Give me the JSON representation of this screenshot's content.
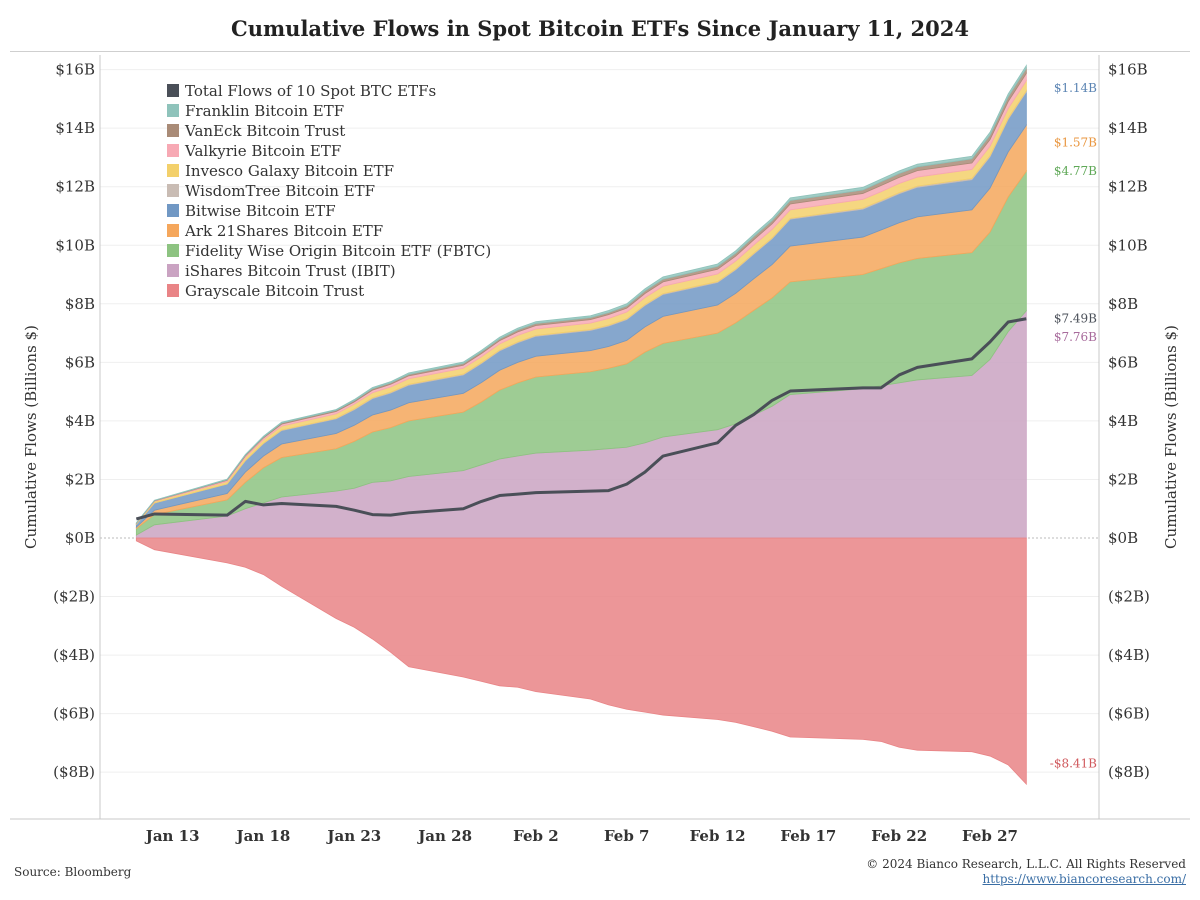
{
  "chart_data": {
    "type": "area",
    "title": "Cumulative Flows in Spot Bitcoin ETFs Since January 11, 2024",
    "ylabel_left": "Cumulative Flows (Billions $)",
    "ylabel_right": "Cumulative Flows (Billions $)",
    "ylim": [
      -9.6,
      16.5
    ],
    "y_ticks": [
      16,
      14,
      12,
      10,
      8,
      6,
      4,
      2,
      0,
      -2,
      -4,
      -6,
      -8
    ],
    "y_tick_labels": [
      "$16B",
      "$14B",
      "$12B",
      "$10B",
      "$8B",
      "$6B",
      "$4B",
      "$2B",
      "$0B",
      "($2B)",
      "($4B)",
      "($6B)",
      "($8B)"
    ],
    "x_ticks": [
      "2024-01-13",
      "2024-01-18",
      "2024-01-23",
      "2024-01-28",
      "2024-02-02",
      "2024-02-07",
      "2024-02-12",
      "2024-02-17",
      "2024-02-22",
      "2024-02-27"
    ],
    "x_tick_labels": [
      "Jan 13",
      "Jan 18",
      "Jan 23",
      "Jan 28",
      "Feb 2",
      "Feb 7",
      "Feb 12",
      "Feb 17",
      "Feb 22",
      "Feb 27"
    ],
    "xlim": [
      "2024-01-09",
      "2024-03-04"
    ],
    "x": [
      "2024-01-11",
      "2024-01-12",
      "2024-01-16",
      "2024-01-17",
      "2024-01-18",
      "2024-01-19",
      "2024-01-22",
      "2024-01-23",
      "2024-01-24",
      "2024-01-25",
      "2024-01-26",
      "2024-01-29",
      "2024-01-30",
      "2024-01-31",
      "2024-02-01",
      "2024-02-02",
      "2024-02-05",
      "2024-02-06",
      "2024-02-07",
      "2024-02-08",
      "2024-02-09",
      "2024-02-12",
      "2024-02-13",
      "2024-02-14",
      "2024-02-15",
      "2024-02-16",
      "2024-02-20",
      "2024-02-21",
      "2024-02-22",
      "2024-02-23",
      "2024-02-26",
      "2024-02-27",
      "2024-02-28",
      "2024-02-29"
    ],
    "stack_positive": [
      "iShares Bitcoin Trust (IBIT)",
      "Fidelity Wise Origin Bitcoin ETF (FBTC)",
      "Ark 21Shares Bitcoin ETF",
      "Bitwise Bitcoin ETF",
      "WisdomTree Bitcoin ETF",
      "Invesco Galaxy Bitcoin ETF",
      "Valkyrie Bitcoin ETF",
      "VanEck Bitcoin Trust",
      "Franklin Bitcoin ETF"
    ],
    "series": [
      {
        "name": "Total Flows of 10 Spot BTC ETFs",
        "color": "#4a4f58",
        "kind": "line",
        "values": [
          0.65,
          0.82,
          0.78,
          1.25,
          1.13,
          1.18,
          1.08,
          0.95,
          0.8,
          0.78,
          0.86,
          1.0,
          1.25,
          1.45,
          1.5,
          1.55,
          1.6,
          1.62,
          1.84,
          2.25,
          2.8,
          3.25,
          3.85,
          4.22,
          4.7,
          5.02,
          5.13,
          5.13,
          5.57,
          5.83,
          6.12,
          6.7,
          7.38,
          7.49
        ]
      },
      {
        "name": "Franklin Bitcoin ETF",
        "color": "#8fc3bb",
        "values": [
          0.01,
          0.01,
          0.02,
          0.02,
          0.03,
          0.03,
          0.03,
          0.04,
          0.04,
          0.04,
          0.05,
          0.05,
          0.05,
          0.06,
          0.06,
          0.06,
          0.06,
          0.07,
          0.07,
          0.07,
          0.08,
          0.08,
          0.08,
          0.08,
          0.08,
          0.09,
          0.09,
          0.09,
          0.09,
          0.09,
          0.09,
          0.1,
          0.1,
          0.1
        ]
      },
      {
        "name": "VanEck Bitcoin Trust",
        "color": "#a98b77",
        "values": [
          0.01,
          0.01,
          0.02,
          0.03,
          0.03,
          0.04,
          0.04,
          0.04,
          0.05,
          0.05,
          0.05,
          0.06,
          0.06,
          0.06,
          0.07,
          0.07,
          0.07,
          0.07,
          0.08,
          0.09,
          0.09,
          0.1,
          0.1,
          0.11,
          0.11,
          0.12,
          0.12,
          0.13,
          0.13,
          0.13,
          0.14,
          0.15,
          0.16,
          0.17
        ]
      },
      {
        "name": "Valkyrie Bitcoin ETF",
        "color": "#f7a9b4",
        "values": [
          0.01,
          0.02,
          0.04,
          0.05,
          0.06,
          0.07,
          0.08,
          0.08,
          0.09,
          0.09,
          0.1,
          0.1,
          0.11,
          0.11,
          0.12,
          0.12,
          0.12,
          0.13,
          0.13,
          0.14,
          0.15,
          0.16,
          0.17,
          0.18,
          0.19,
          0.2,
          0.2,
          0.21,
          0.21,
          0.22,
          0.22,
          0.23,
          0.24,
          0.25
        ]
      },
      {
        "name": "Invesco Galaxy Bitcoin ETF",
        "color": "#f3d06b",
        "values": [
          0.02,
          0.05,
          0.08,
          0.1,
          0.12,
          0.13,
          0.15,
          0.16,
          0.17,
          0.18,
          0.19,
          0.2,
          0.2,
          0.21,
          0.22,
          0.22,
          0.22,
          0.23,
          0.23,
          0.24,
          0.25,
          0.26,
          0.27,
          0.28,
          0.29,
          0.29,
          0.3,
          0.3,
          0.31,
          0.31,
          0.31,
          0.32,
          0.33,
          0.34
        ]
      },
      {
        "name": "WisdomTree Bitcoin ETF",
        "color": "#c9bcb4",
        "values": [
          0.0,
          0.01,
          0.01,
          0.02,
          0.02,
          0.02,
          0.02,
          0.03,
          0.03,
          0.03,
          0.03,
          0.03,
          0.03,
          0.03,
          0.03,
          0.03,
          0.03,
          0.03,
          0.03,
          0.03,
          0.03,
          0.03,
          0.03,
          0.03,
          0.03,
          0.03,
          0.04,
          0.04,
          0.04,
          0.04,
          0.04,
          0.04,
          0.04,
          0.04
        ]
      },
      {
        "name": "Bitwise Bitcoin ETF",
        "color": "#7198c4",
        "values": [
          0.1,
          0.24,
          0.32,
          0.38,
          0.42,
          0.46,
          0.5,
          0.53,
          0.56,
          0.58,
          0.6,
          0.63,
          0.65,
          0.66,
          0.67,
          0.68,
          0.69,
          0.7,
          0.71,
          0.73,
          0.75,
          0.77,
          0.8,
          0.84,
          0.88,
          0.92,
          0.95,
          0.97,
          0.99,
          1.01,
          1.03,
          1.07,
          1.11,
          1.14
        ]
      },
      {
        "name": "Ark 21Shares Bitcoin ETF",
        "color": "#f5a75c",
        "values": [
          0.05,
          0.15,
          0.22,
          0.35,
          0.4,
          0.46,
          0.52,
          0.55,
          0.58,
          0.6,
          0.62,
          0.64,
          0.66,
          0.68,
          0.7,
          0.71,
          0.72,
          0.74,
          0.8,
          0.86,
          0.92,
          0.96,
          1.01,
          1.08,
          1.14,
          1.22,
          1.28,
          1.32,
          1.37,
          1.42,
          1.46,
          1.5,
          1.54,
          1.57
        ]
      },
      {
        "name": "Fidelity Wise Origin Bitcoin ETF (FBTC)",
        "color": "#8dc381",
        "values": [
          0.22,
          0.35,
          0.55,
          0.9,
          1.2,
          1.35,
          1.45,
          1.6,
          1.72,
          1.82,
          1.9,
          2.0,
          2.15,
          2.35,
          2.5,
          2.6,
          2.68,
          2.75,
          2.85,
          3.1,
          3.2,
          3.3,
          3.45,
          3.58,
          3.7,
          3.85,
          3.9,
          4.0,
          4.1,
          4.15,
          4.2,
          4.35,
          4.6,
          4.77
        ]
      },
      {
        "name": "iShares Bitcoin Trust (IBIT)",
        "color": "#caa3c2",
        "values": [
          0.1,
          0.45,
          0.75,
          1.0,
          1.2,
          1.4,
          1.6,
          1.7,
          1.9,
          1.95,
          2.1,
          2.3,
          2.5,
          2.7,
          2.8,
          2.9,
          3.0,
          3.05,
          3.1,
          3.25,
          3.45,
          3.7,
          3.9,
          4.2,
          4.5,
          4.9,
          5.1,
          5.2,
          5.3,
          5.4,
          5.55,
          6.1,
          7.05,
          7.76
        ]
      },
      {
        "name": "Grayscale Bitcoin Trust",
        "color": "#e98486",
        "values": [
          -0.1,
          -0.4,
          -0.85,
          -1.0,
          -1.25,
          -1.65,
          -2.75,
          -3.05,
          -3.45,
          -3.9,
          -4.4,
          -4.75,
          -4.9,
          -5.05,
          -5.1,
          -5.25,
          -5.5,
          -5.7,
          -5.85,
          -5.95,
          -6.05,
          -6.2,
          -6.3,
          -6.45,
          -6.6,
          -6.8,
          -6.88,
          -6.95,
          -7.15,
          -7.25,
          -7.3,
          -7.45,
          -7.75,
          -8.41
        ]
      }
    ],
    "end_labels": [
      {
        "text": "$1.14B",
        "series": "Bitwise Bitcoin ETF",
        "color": "#5b84b3"
      },
      {
        "text": "$1.57B",
        "series": "Ark 21Shares Bitcoin ETF",
        "color": "#e9963f"
      },
      {
        "text": "$4.77B",
        "series": "Fidelity Wise Origin Bitcoin ETF (FBTC)",
        "color": "#5fa857"
      },
      {
        "text": "$7.49B",
        "series": "Total Flows of 10 Spot BTC ETFs",
        "color": "#4a4f58"
      },
      {
        "text": "$7.76B",
        "series": "iShares Bitcoin Trust (IBIT)",
        "color": "#a86b9c"
      },
      {
        "text": "-$8.41B",
        "series": "Grayscale Bitcoin Trust",
        "color": "#d0585c"
      }
    ],
    "legend": {
      "placement": "top-left"
    },
    "grid": true
  },
  "footer": {
    "source": "Source: Bloomberg",
    "copyright": "© 2024 Bianco Research, L.L.C. All Rights Reserved",
    "url": "https://www.biancoresearch.com/"
  }
}
